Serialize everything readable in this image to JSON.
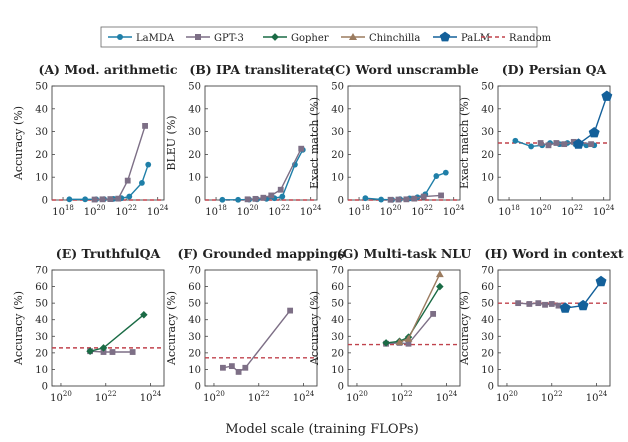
{
  "legend": [
    {
      "key": "lamda",
      "label": "LaMDA",
      "color": "#1f7fa8",
      "marker": "circle"
    },
    {
      "key": "gpt3",
      "label": "GPT-3",
      "color": "#7d6f86",
      "marker": "square"
    },
    {
      "key": "gopher",
      "label": "Gopher",
      "color": "#1a6b45",
      "marker": "diamond"
    },
    {
      "key": "chinchilla",
      "label": "Chinchilla",
      "color": "#9b7b5f",
      "marker": "triangle"
    },
    {
      "key": "palm",
      "label": "PaLM",
      "color": "#13609a",
      "marker": "pentagon"
    },
    {
      "key": "random",
      "label": "Random",
      "color": "#c0424c",
      "marker": "dashed"
    }
  ],
  "xlabel": "Model scale (training FLOPs)",
  "chart_data": [
    {
      "id": "A",
      "type": "line",
      "title": "(A) Mod. arithmetic",
      "ylabel": "Accuracy (%)",
      "xlim": [
        17.3,
        24.4
      ],
      "ylim": [
        0,
        50
      ],
      "yticks": [
        0,
        10,
        20,
        30,
        40,
        50
      ],
      "xticks": [
        {
          "v": 18,
          "label": "10",
          "exp": "18"
        },
        {
          "v": 20,
          "label": "10",
          "exp": "20"
        },
        {
          "v": 22,
          "label": "10",
          "exp": "22"
        },
        {
          "v": 24,
          "label": "10",
          "exp": "24"
        }
      ],
      "random": 0,
      "series": [
        {
          "key": "lamda",
          "points": [
            [
              18.4,
              0.3
            ],
            [
              19.4,
              0.3
            ],
            [
              20.1,
              0.3
            ],
            [
              20.6,
              0.4
            ],
            [
              21.2,
              0.5
            ],
            [
              21.7,
              0.8
            ],
            [
              22.2,
              1.5
            ],
            [
              23.0,
              7.5
            ],
            [
              23.4,
              15.5
            ]
          ]
        },
        {
          "key": "gpt3",
          "points": [
            [
              20.0,
              0.2
            ],
            [
              20.5,
              0.3
            ],
            [
              21.0,
              0.4
            ],
            [
              21.5,
              0.6
            ],
            [
              22.1,
              8.5
            ],
            [
              23.2,
              32.5
            ]
          ]
        }
      ]
    },
    {
      "id": "B",
      "type": "line",
      "title": "(B) IPA transliterate",
      "ylabel": "BLEU (%)",
      "xlim": [
        17.3,
        24.4
      ],
      "ylim": [
        0,
        50
      ],
      "yticks": [
        0,
        10,
        20,
        30,
        40,
        50
      ],
      "xticks": [
        {
          "v": 18,
          "label": "10",
          "exp": "18"
        },
        {
          "v": 20,
          "label": "10",
          "exp": "20"
        },
        {
          "v": 22,
          "label": "10",
          "exp": "22"
        },
        {
          "v": 24,
          "label": "10",
          "exp": "24"
        }
      ],
      "random": 0,
      "series": [
        {
          "key": "lamda",
          "points": [
            [
              18.4,
              0.1
            ],
            [
              19.4,
              0.1
            ],
            [
              20.1,
              0.2
            ],
            [
              20.6,
              0.3
            ],
            [
              21.2,
              0.5
            ],
            [
              21.7,
              0.8
            ],
            [
              22.2,
              1.5
            ],
            [
              23.0,
              15.5
            ],
            [
              23.5,
              22
            ]
          ]
        },
        {
          "key": "gpt3",
          "points": [
            [
              20.0,
              0.3
            ],
            [
              20.5,
              0.5
            ],
            [
              21.0,
              1.0
            ],
            [
              21.5,
              2.0
            ],
            [
              22.1,
              4.5
            ],
            [
              23.4,
              22.5
            ]
          ]
        }
      ]
    },
    {
      "id": "C",
      "type": "line",
      "title": "(C) Word unscramble",
      "ylabel": "Exact match (%)",
      "xlim": [
        17.3,
        24.4
      ],
      "ylim": [
        0,
        50
      ],
      "yticks": [
        0,
        10,
        20,
        30,
        40,
        50
      ],
      "xticks": [
        {
          "v": 18,
          "label": "10",
          "exp": "18"
        },
        {
          "v": 20,
          "label": "10",
          "exp": "20"
        },
        {
          "v": 22,
          "label": "10",
          "exp": "22"
        },
        {
          "v": 24,
          "label": "10",
          "exp": "24"
        }
      ],
      "random": 0,
      "series": [
        {
          "key": "lamda",
          "points": [
            [
              18.4,
              0.8
            ],
            [
              19.4,
              0.2
            ],
            [
              20.1,
              0.1
            ],
            [
              20.6,
              0.4
            ],
            [
              21.2,
              0.7
            ],
            [
              21.7,
              1.2
            ],
            [
              22.2,
              2.5
            ],
            [
              22.9,
              10.5
            ],
            [
              23.5,
              12
            ]
          ]
        },
        {
          "key": "gpt3",
          "points": [
            [
              20.0,
              0.1
            ],
            [
              20.5,
              0.2
            ],
            [
              21.0,
              0.3
            ],
            [
              21.5,
              0.6
            ],
            [
              22.1,
              1.5
            ],
            [
              23.2,
              2.0
            ]
          ]
        }
      ]
    },
    {
      "id": "D",
      "type": "line",
      "title": "(D) Persian QA",
      "ylabel": "Exact match (%)",
      "xlim": [
        17.3,
        24.4
      ],
      "ylim": [
        0,
        50
      ],
      "yticks": [
        0,
        10,
        20,
        30,
        40,
        50
      ],
      "xticks": [
        {
          "v": 18,
          "label": "10",
          "exp": "18"
        },
        {
          "v": 20,
          "label": "10",
          "exp": "20"
        },
        {
          "v": 22,
          "label": "10",
          "exp": "22"
        },
        {
          "v": 24,
          "label": "10",
          "exp": "24"
        }
      ],
      "random": 25,
      "series": [
        {
          "key": "lamda",
          "points": [
            [
              18.4,
              26
            ],
            [
              19.4,
              23.5
            ],
            [
              20.1,
              24
            ],
            [
              20.6,
              25
            ],
            [
              21.2,
              24.5
            ],
            [
              21.7,
              25
            ],
            [
              22.2,
              24.5
            ],
            [
              22.9,
              24
            ],
            [
              23.4,
              24
            ]
          ]
        },
        {
          "key": "gpt3",
          "points": [
            [
              20.0,
              25
            ],
            [
              20.5,
              24
            ],
            [
              21.0,
              25
            ],
            [
              21.5,
              24.5
            ],
            [
              22.1,
              25.5
            ],
            [
              23.2,
              24.5
            ]
          ]
        },
        {
          "key": "palm",
          "points": [
            [
              22.4,
              24.5
            ],
            [
              23.4,
              29.5
            ],
            [
              24.2,
              45.5
            ]
          ]
        }
      ]
    },
    {
      "id": "E",
      "type": "line",
      "title": "(E) TruthfulQA",
      "ylabel": "Accuracy (%)",
      "xlim": [
        19.6,
        24.6
      ],
      "ylim": [
        0,
        70
      ],
      "yticks": [
        0,
        10,
        20,
        30,
        40,
        50,
        60,
        70
      ],
      "xticks": [
        {
          "v": 20,
          "label": "10",
          "exp": "20"
        },
        {
          "v": 22,
          "label": "10",
          "exp": "22"
        },
        {
          "v": 24,
          "label": "10",
          "exp": "24"
        }
      ],
      "random": 23,
      "series": [
        {
          "key": "gpt3",
          "points": [
            [
              21.3,
              21
            ],
            [
              21.9,
              20.5
            ],
            [
              22.3,
              20.5
            ],
            [
              23.2,
              20.5
            ]
          ]
        },
        {
          "key": "gopher",
          "points": [
            [
              21.3,
              21
            ],
            [
              21.9,
              23
            ],
            [
              23.7,
              43
            ]
          ]
        }
      ]
    },
    {
      "id": "F",
      "type": "line",
      "title": "(F) Grounded mappings",
      "ylabel": "Accuracy (%)",
      "xlim": [
        19.6,
        24.6
      ],
      "ylim": [
        0,
        70
      ],
      "yticks": [
        0,
        10,
        20,
        30,
        40,
        50,
        60,
        70
      ],
      "xticks": [
        {
          "v": 20,
          "label": "10",
          "exp": "20"
        },
        {
          "v": 22,
          "label": "10",
          "exp": "22"
        },
        {
          "v": 24,
          "label": "10",
          "exp": "24"
        }
      ],
      "random": 17,
      "series": [
        {
          "key": "gpt3",
          "points": [
            [
              20.4,
              11
            ],
            [
              20.8,
              12
            ],
            [
              21.1,
              8.5
            ],
            [
              21.4,
              11
            ],
            [
              23.4,
              45.5
            ]
          ]
        }
      ]
    },
    {
      "id": "G",
      "type": "line",
      "title": "(G) Multi-task NLU",
      "ylabel": "Accuracy (%)",
      "xlim": [
        19.6,
        24.6
      ],
      "ylim": [
        0,
        70
      ],
      "yticks": [
        0,
        10,
        20,
        30,
        40,
        50,
        60,
        70
      ],
      "xticks": [
        {
          "v": 20,
          "label": "10",
          "exp": "20"
        },
        {
          "v": 22,
          "label": "10",
          "exp": "22"
        },
        {
          "v": 24,
          "label": "10",
          "exp": "24"
        }
      ],
      "random": 25,
      "series": [
        {
          "key": "gpt3",
          "points": [
            [
              21.3,
              25.5
            ],
            [
              21.9,
              26
            ],
            [
              22.3,
              25.5
            ],
            [
              23.4,
              43.5
            ]
          ]
        },
        {
          "key": "gopher",
          "points": [
            [
              21.3,
              26
            ],
            [
              21.9,
              27
            ],
            [
              22.3,
              29.5
            ],
            [
              23.7,
              60
            ]
          ]
        },
        {
          "key": "chinchilla",
          "points": [
            [
              21.9,
              26.5
            ],
            [
              22.3,
              28.5
            ],
            [
              23.7,
              67.5
            ]
          ]
        }
      ]
    },
    {
      "id": "H",
      "type": "line",
      "title": "(H) Word in context",
      "ylabel": "Accuracy (%)",
      "xlim": [
        19.6,
        24.6
      ],
      "ylim": [
        0,
        70
      ],
      "yticks": [
        0,
        10,
        20,
        30,
        40,
        50,
        60,
        70
      ],
      "xticks": [
        {
          "v": 20,
          "label": "10",
          "exp": "20"
        },
        {
          "v": 22,
          "label": "10",
          "exp": "22"
        },
        {
          "v": 24,
          "label": "10",
          "exp": "24"
        }
      ],
      "random": 50,
      "series": [
        {
          "key": "gpt3",
          "points": [
            [
              20.5,
              50
            ],
            [
              21.0,
              49.5
            ],
            [
              21.4,
              50
            ],
            [
              21.7,
              49
            ],
            [
              22.0,
              49.5
            ],
            [
              22.3,
              48.5
            ]
          ]
        },
        {
          "key": "palm",
          "points": [
            [
              22.6,
              47
            ],
            [
              23.4,
              48.5
            ],
            [
              24.2,
              63
            ]
          ]
        }
      ]
    }
  ]
}
